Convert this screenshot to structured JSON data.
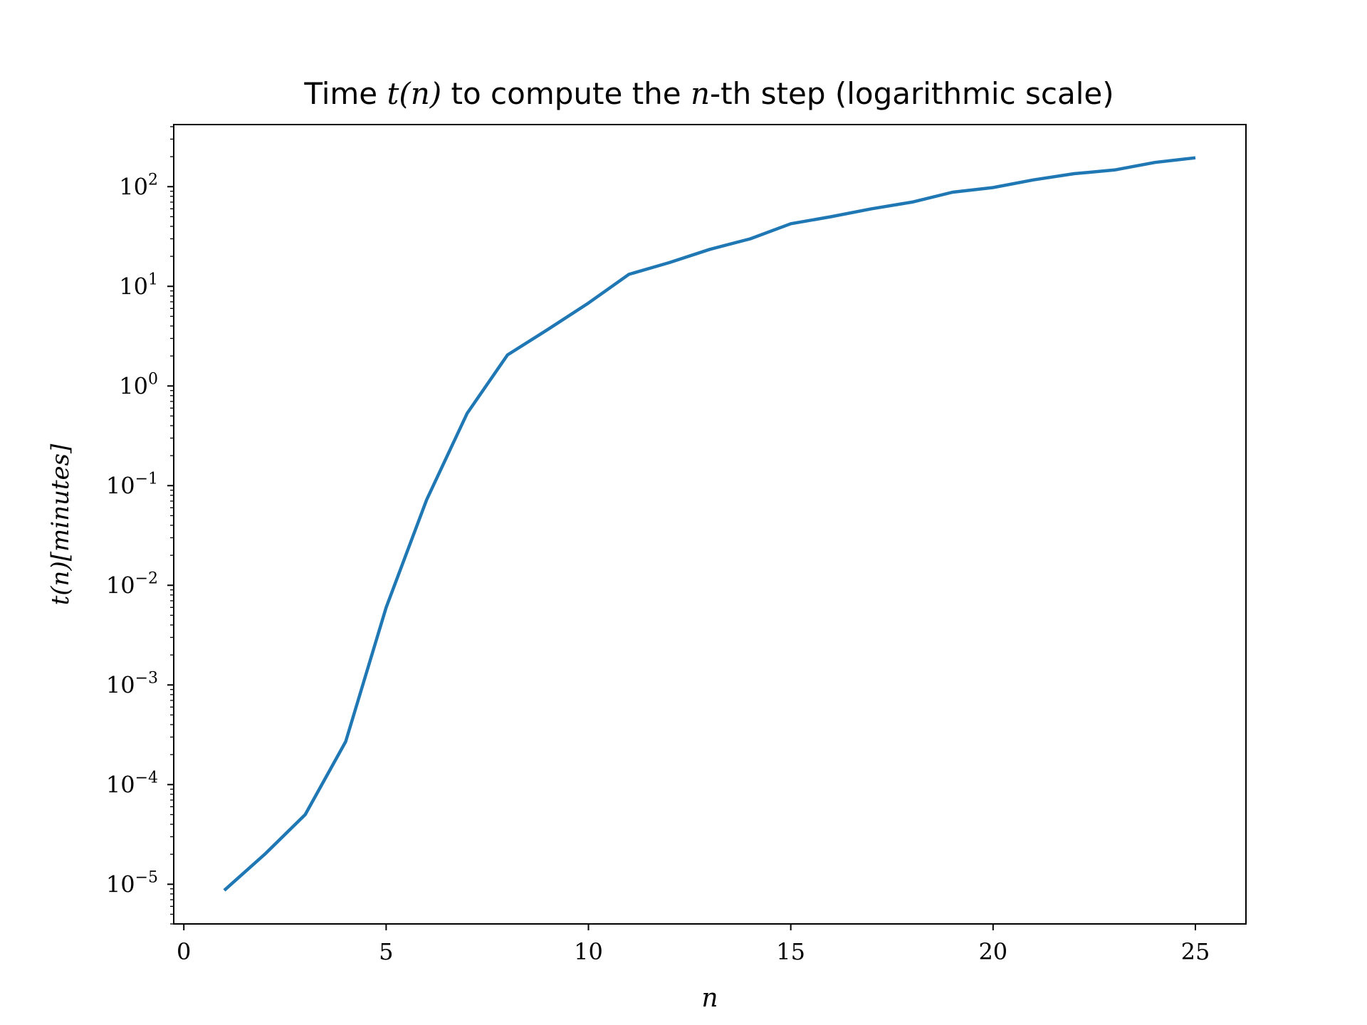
{
  "chart_data": {
    "type": "line",
    "title": {
      "prefix": "Time ",
      "math1": "t(n)",
      "middle": " to compute the ",
      "math2": "n",
      "suffix": "-th step (logarithmic scale)"
    },
    "xlabel": "n",
    "ylabel": {
      "main": "t(n)",
      "unit": "[minutes]"
    },
    "xscale": "linear",
    "yscale": "log",
    "xlim": [
      -0.25,
      26.25
    ],
    "ylim": [
      4e-06,
      420
    ],
    "xticks": [
      0,
      5,
      10,
      15,
      20,
      25
    ],
    "yticks": [
      {
        "value": 1e-05,
        "base": "10",
        "exp": "−5"
      },
      {
        "value": 0.0001,
        "base": "10",
        "exp": "−4"
      },
      {
        "value": 0.001,
        "base": "10",
        "exp": "−3"
      },
      {
        "value": 0.01,
        "base": "10",
        "exp": "−2"
      },
      {
        "value": 0.1,
        "base": "10",
        "exp": "−1"
      },
      {
        "value": 1,
        "base": "10",
        "exp": "0"
      },
      {
        "value": 10,
        "base": "10",
        "exp": "1"
      },
      {
        "value": 100,
        "base": "10",
        "exp": "2"
      }
    ],
    "grid": false,
    "series": [
      {
        "color": "#1f77b4",
        "x": [
          1,
          2,
          3,
          4,
          5,
          6,
          7,
          8,
          9,
          10,
          11,
          12,
          13,
          14,
          15,
          16,
          17,
          18,
          19,
          20,
          21,
          22,
          23,
          24,
          25
        ],
        "y": [
          8.7e-06,
          2e-05,
          5e-05,
          0.00027,
          0.006,
          0.072,
          0.53,
          2.05,
          3.7,
          6.8,
          13.2,
          17.3,
          23.5,
          30,
          42.5,
          50,
          60,
          70,
          88,
          98,
          117,
          135,
          147,
          175,
          195
        ]
      }
    ]
  }
}
